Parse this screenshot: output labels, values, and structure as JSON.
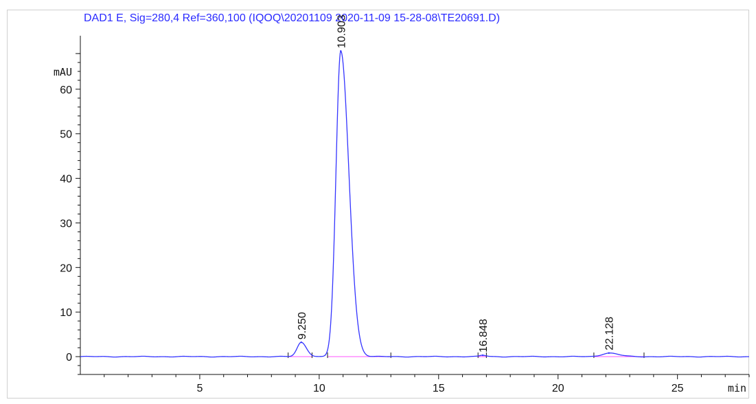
{
  "title": "DAD1 E, Sig=280,4 Ref=360,100 (IQOQ\\20201109 2020-11-09 15-28-08\\TE20691.D)",
  "colors": {
    "trace": "#3333ff",
    "baseline": "#ff66ff",
    "title": "#2a2aff",
    "axis": "#111111"
  },
  "chart_data": {
    "type": "line",
    "title": "DAD1 E, Sig=280,4 Ref=360,100 (IQOQ\\20201109 2020-11-09 15-28-08\\TE20691.D)",
    "xlabel": "min",
    "ylabel": "mAU",
    "xlim": [
      0,
      28
    ],
    "ylim": [
      -4,
      72
    ],
    "x_ticks": [
      5,
      10,
      15,
      20,
      25
    ],
    "y_ticks": [
      0,
      10,
      20,
      30,
      40,
      50,
      60
    ],
    "grid": false,
    "baseline": 0,
    "peaks": [
      {
        "rt": 9.25,
        "label": "9.250",
        "height": 3.2,
        "sigma": 0.17,
        "tail": 0.22,
        "start": 8.7,
        "end": 9.7
      },
      {
        "rt": 10.903,
        "label": "10.903",
        "height": 68.5,
        "sigma": 0.2,
        "tail": 0.34,
        "start": 10.35,
        "end": 13.0
      },
      {
        "rt": 16.848,
        "label": "16.848",
        "height": 0.3,
        "sigma": 0.12,
        "tail": 0.15,
        "start": 16.65,
        "end": 17.0
      },
      {
        "rt": 22.128,
        "label": "22.128",
        "height": 0.8,
        "sigma": 0.3,
        "tail": 0.4,
        "start": 21.5,
        "end": 23.6
      }
    ]
  }
}
